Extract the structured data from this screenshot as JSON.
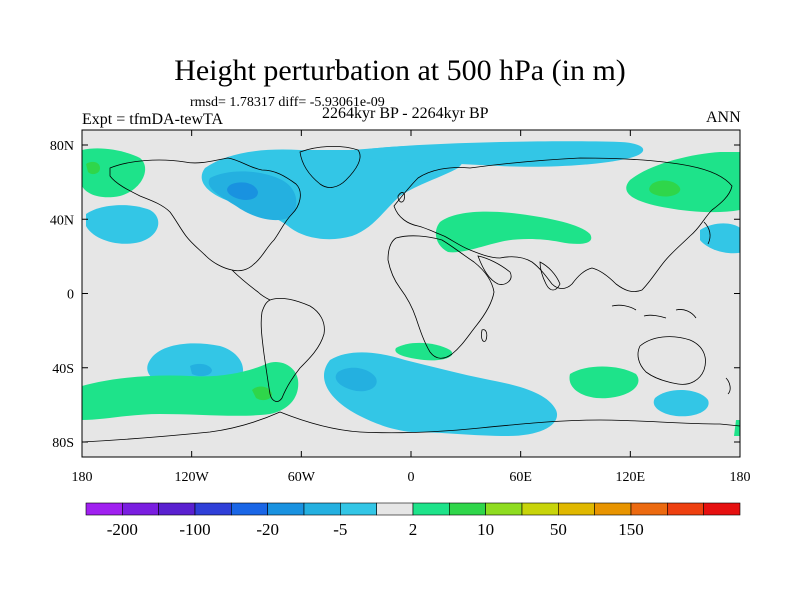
{
  "title": "Height perturbation at 500 hPa (in m)",
  "stats": "rmsd= 1.78317  diff= -5.93061e-09",
  "experiment": "Expt = tfmDA-tewTA",
  "period": "2264kyr BP - 2264kyr BP",
  "season": "ANN",
  "map": {
    "lat_ticks": [
      "80N",
      "40N",
      "0",
      "40S",
      "80S"
    ],
    "lat_values": [
      80,
      40,
      0,
      -40,
      -80
    ],
    "lon_ticks": [
      "180",
      "120W",
      "60W",
      "0",
      "60E",
      "120E",
      "180"
    ],
    "lon_values": [
      -180,
      -120,
      -60,
      0,
      60,
      120,
      180
    ]
  },
  "colorbar": {
    "colors": [
      "#a020f0",
      "#7a1ee0",
      "#5a20d0",
      "#2f3fd8",
      "#1a66e6",
      "#1992e0",
      "#24b0e0",
      "#33c6e6",
      "#e6e6e6",
      "#1ee38a",
      "#2fd64a",
      "#8fdc20",
      "#c8d40a",
      "#e0b800",
      "#e89400",
      "#ec6a10",
      "#ee4010",
      "#e61010"
    ],
    "labels": [
      "-200",
      "-100",
      "-20",
      "-5",
      "2",
      "10",
      "50",
      "150"
    ],
    "label_boundaries": [
      1,
      3,
      5,
      7,
      9,
      11,
      13,
      15
    ],
    "background_color": "#e6e6e6",
    "light_blue": "#33c6e6",
    "mid_blue": "#24b0e0",
    "dark_blue": "#1992e0",
    "light_green": "#1ee38a",
    "dark_green": "#2fd64a"
  }
}
